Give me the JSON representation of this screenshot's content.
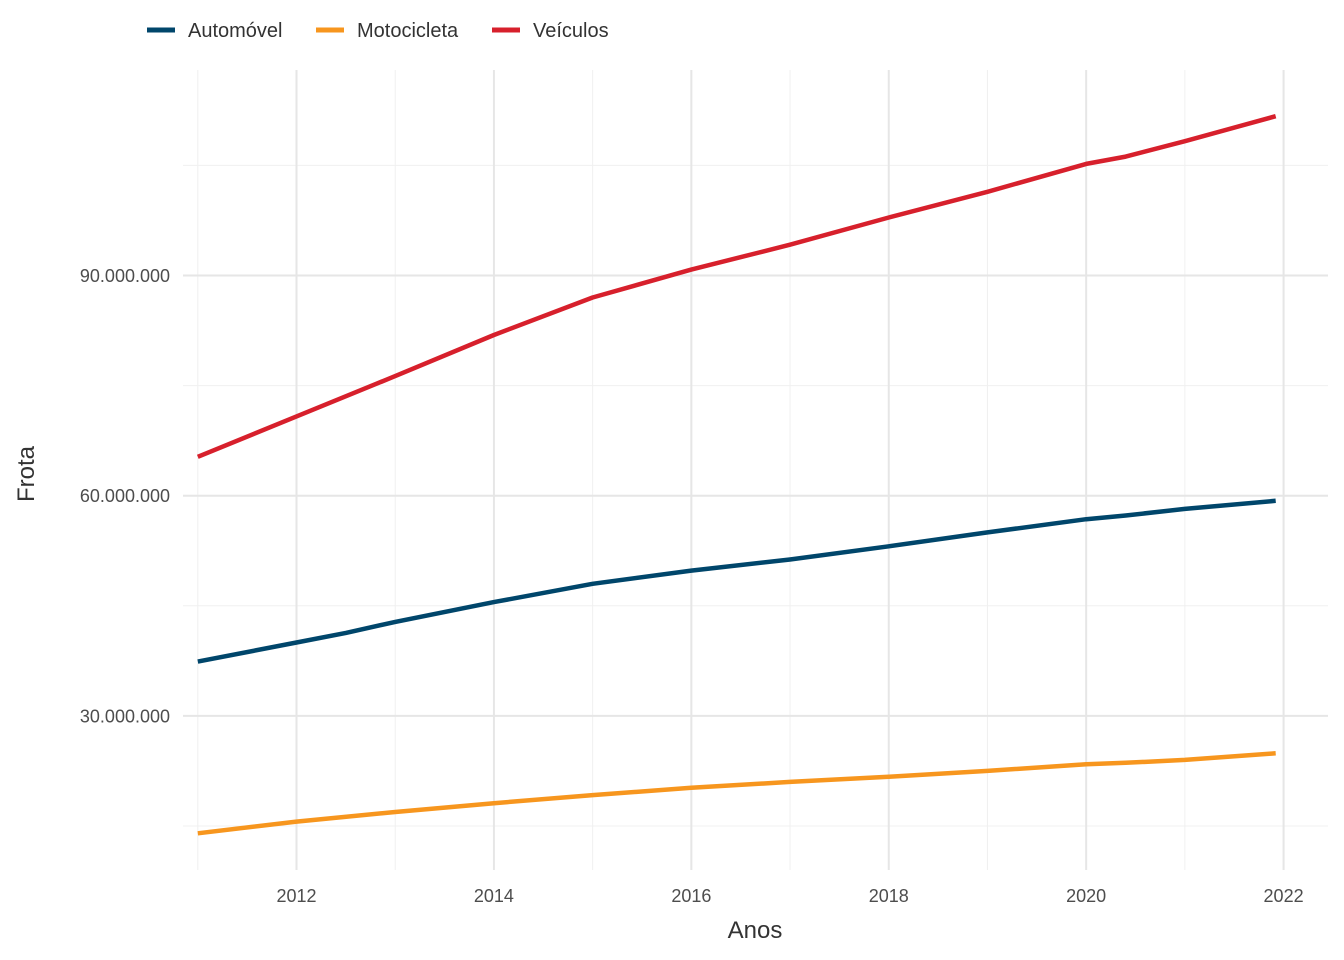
{
  "chart_data": {
    "type": "line",
    "xlabel": "Anos",
    "ylabel": "Frota",
    "xlim": [
      2010.85,
      2022.45
    ],
    "ylim": [
      9000000,
      118000000
    ],
    "x_ticks": [
      2012,
      2014,
      2016,
      2018,
      2020,
      2022
    ],
    "x_tick_labels": [
      "2012",
      "2014",
      "2016",
      "2018",
      "2020",
      "2022"
    ],
    "y_ticks": [
      30000000,
      60000000,
      90000000
    ],
    "y_tick_labels": [
      "30.000.000",
      "60.000.000",
      "90.000.000"
    ],
    "y_minor_ticks": [
      15000000,
      45000000,
      75000000,
      105000000
    ],
    "x_minor_ticks": [
      2011,
      2013,
      2015,
      2017,
      2019,
      2021
    ],
    "grid": true,
    "legend_position": "top-left",
    "series": [
      {
        "name": "Automóvel",
        "color": "#00466b",
        "x": [
          2011.0,
          2012.0,
          2012.5,
          2013.0,
          2014.0,
          2015.0,
          2016.0,
          2017.0,
          2018.0,
          2019.0,
          2020.0,
          2020.4,
          2021.0,
          2021.92
        ],
        "values": [
          37400000,
          40000000,
          41300000,
          42800000,
          45500000,
          48000000,
          49800000,
          51300000,
          53100000,
          55000000,
          56800000,
          57300000,
          58200000,
          59300000
        ]
      },
      {
        "name": "Motocicleta",
        "color": "#f7961e",
        "x": [
          2011.0,
          2012.0,
          2013.0,
          2014.0,
          2015.0,
          2016.0,
          2017.0,
          2018.0,
          2019.0,
          2020.0,
          2020.4,
          2021.0,
          2021.92
        ],
        "values": [
          14000000,
          15600000,
          16900000,
          18100000,
          19200000,
          20200000,
          21000000,
          21700000,
          22500000,
          23400000,
          23600000,
          24000000,
          24900000
        ]
      },
      {
        "name": "Veículos",
        "color": "#d7202c",
        "x": [
          2011.0,
          2012.0,
          2013.0,
          2014.0,
          2015.0,
          2016.0,
          2017.0,
          2018.0,
          2019.0,
          2020.0,
          2020.4,
          2021.0,
          2021.92
        ],
        "values": [
          65300000,
          70800000,
          76300000,
          81900000,
          87000000,
          90800000,
          94200000,
          97900000,
          101400000,
          105200000,
          106200000,
          108300000,
          111700000
        ]
      }
    ]
  }
}
